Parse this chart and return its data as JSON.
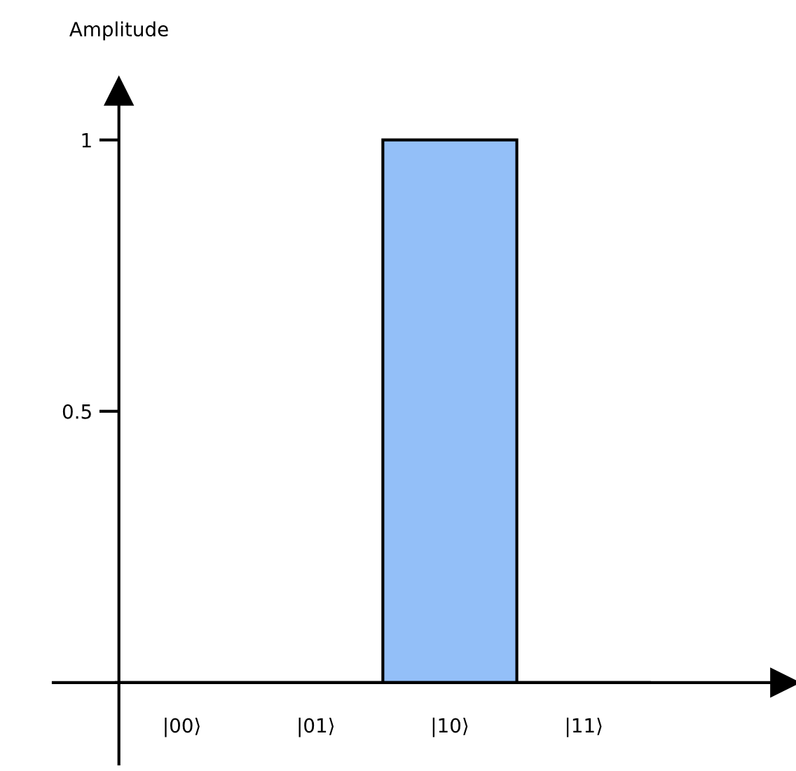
{
  "chart_data": {
    "type": "bar",
    "ylabel": "Amplitude",
    "categories": [
      "|00⟩",
      "|01⟩",
      "|10⟩",
      "|11⟩"
    ],
    "values": [
      0,
      0,
      1,
      0
    ],
    "color": "#93bff8",
    "ylim": [
      -0.15,
      1.09
    ],
    "yticks": [
      0.5,
      1
    ],
    "grid": false,
    "legend": false
  }
}
